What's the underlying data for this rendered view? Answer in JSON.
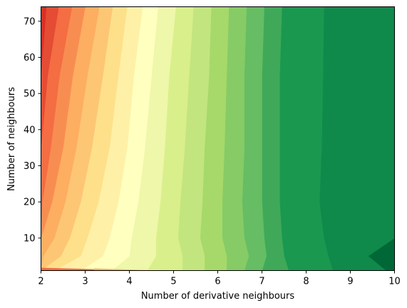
{
  "chart_data": {
    "type": "heatmap",
    "subtype": "filled-contour",
    "colormap": "RdYlGn",
    "xlabel": "Number of derivative neighbours",
    "ylabel": "Number of neighbours",
    "xlim": [
      2,
      10
    ],
    "ylim": [
      1,
      74
    ],
    "xticks": [
      2,
      3,
      4,
      5,
      6,
      7,
      8,
      9,
      10
    ],
    "yticks": [
      10,
      20,
      30,
      40,
      50,
      60,
      70
    ],
    "grid": false,
    "levels": 20,
    "palette": [
      "#a50026",
      "#d73027",
      "#e44c34",
      "#f46d43",
      "#f88d52",
      "#fdae61",
      "#fdc675",
      "#fee08b",
      "#fff0a8",
      "#ffffbf",
      "#eef7aa",
      "#d9ef8b",
      "#c2e57f",
      "#a6d96a",
      "#86cb66",
      "#66bd63",
      "#3fa959",
      "#1a9850",
      "#0f8a4b",
      "#006837"
    ],
    "level_boundaries": [
      {
        "level": 1,
        "x": [
          2.0,
          2.0,
          2.0,
          2.0,
          2.0,
          2.0,
          2.0
        ]
      },
      {
        "level": 2,
        "x": [
          2.0,
          2.0,
          2.0,
          2.0,
          2.0,
          2.0,
          2.12
        ]
      },
      {
        "level": 3,
        "x": [
          2.0,
          2.0,
          2.0,
          2.0,
          2.0,
          2.15,
          2.4
        ]
      },
      {
        "level": 4,
        "x": [
          2.0,
          2.0,
          2.0,
          2.03,
          2.22,
          2.42,
          2.7
        ]
      },
      {
        "level": 5,
        "x": [
          2.0,
          2.0,
          2.0,
          2.25,
          2.5,
          2.72,
          3.0
        ]
      },
      {
        "level": 6,
        "x": [
          2.0,
          2.05,
          2.3,
          2.55,
          2.8,
          3.05,
          3.32
        ]
      },
      {
        "level": 7,
        "x": [
          2.0,
          2.45,
          2.65,
          2.9,
          3.15,
          3.4,
          3.62
        ]
      },
      {
        "level": 8,
        "x": [
          2.3,
          2.9,
          3.05,
          3.3,
          3.55,
          3.75,
          3.95
        ]
      },
      {
        "level": 9,
        "x": [
          2.9,
          3.4,
          3.55,
          3.75,
          3.95,
          4.1,
          4.3
        ]
      },
      {
        "level": 10,
        "x": [
          3.6,
          4.0,
          4.05,
          4.2,
          4.35,
          4.5,
          4.65
        ]
      },
      {
        "level": 11,
        "x": [
          4.4,
          4.6,
          4.6,
          4.7,
          4.8,
          4.9,
          5.05
        ]
      },
      {
        "level": 12,
        "x": [
          5.2,
          5.2,
          5.1,
          5.15,
          5.25,
          5.35,
          5.45
        ]
      },
      {
        "level": 13,
        "x": [
          5.7,
          5.7,
          5.6,
          5.65,
          5.7,
          5.8,
          5.85
        ]
      },
      {
        "level": 14,
        "x": [
          6.2,
          6.2,
          6.1,
          6.1,
          6.15,
          6.2,
          6.25
        ]
      },
      {
        "level": 15,
        "x": [
          6.6,
          6.7,
          6.6,
          6.55,
          6.6,
          6.6,
          6.65
        ]
      },
      {
        "level": 16,
        "x": [
          7.0,
          7.1,
          7.05,
          7.0,
          7.0,
          7.0,
          7.05
        ]
      },
      {
        "level": 17,
        "x": [
          7.6,
          7.5,
          7.45,
          7.4,
          7.4,
          7.4,
          7.45
        ]
      },
      {
        "level": 18,
        "x": [
          8.6,
          8.5,
          8.4,
          8.3,
          8.35,
          8.38,
          8.4
        ]
      },
      {
        "level": 19,
        "x": [
          9.8,
          9.4,
          10.0,
          10.0,
          10.0,
          10.0,
          10.0
        ]
      }
    ],
    "boundary_y": [
      1,
      5,
      10,
      20,
      35,
      55,
      74
    ],
    "bottom_edge": {
      "note": "thin band at y near 1",
      "colors": [
        "#f46d43",
        "#fdae61",
        "#fee08b"
      ]
    }
  }
}
